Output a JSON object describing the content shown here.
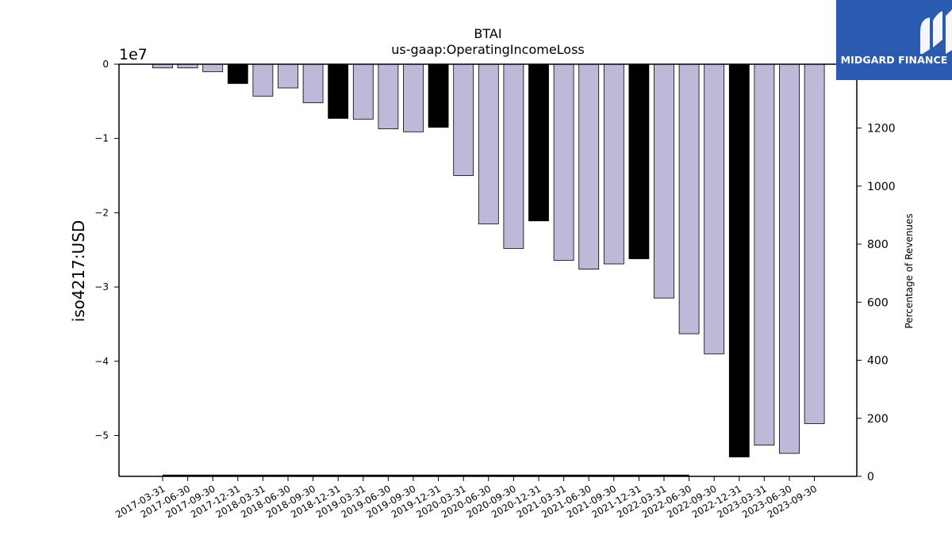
{
  "chart_data": {
    "type": "bar",
    "title": "BTAI",
    "subtitle": "us-gaap:OperatingIncomeLoss",
    "ylabel": "iso4217:USD",
    "y_offset_label": "1e7",
    "y2label": "Percentage of Revenues",
    "categories": [
      "2017-03-31",
      "2017-06-30",
      "2017-09-30",
      "2017-12-31",
      "2018-03-31",
      "2018-06-30",
      "2018-09-30",
      "2018-12-31",
      "2019-03-31",
      "2019-06-30",
      "2019-09-30",
      "2019-12-31",
      "2020-03-31",
      "2020-06-30",
      "2020-09-30",
      "2020-12-31",
      "2021-03-31",
      "2021-06-30",
      "2021-09-30",
      "2021-12-31",
      "2022-03-31",
      "2022-06-30",
      "2022-09-30",
      "2022-12-31",
      "2023-03-31",
      "2023-06-30",
      "2023-09-30"
    ],
    "values": [
      -0.05,
      -0.05,
      -0.1,
      -0.26,
      -0.43,
      -0.32,
      -0.52,
      -0.73,
      -0.74,
      -0.87,
      -0.91,
      -0.85,
      -1.5,
      -2.15,
      -2.48,
      -2.11,
      -2.64,
      -2.76,
      -2.69,
      -2.62,
      -3.15,
      -3.63,
      -3.9,
      -5.29,
      -5.13,
      -5.24,
      -4.84
    ],
    "value_multiplier": 10000000,
    "highlighted": [
      false,
      false,
      false,
      true,
      false,
      false,
      false,
      true,
      false,
      false,
      false,
      true,
      false,
      false,
      false,
      true,
      false,
      false,
      false,
      true,
      false,
      false,
      false,
      true,
      false,
      false,
      false
    ],
    "ylim": [
      -5.55,
      0
    ],
    "yticks": [
      0,
      -1,
      -2,
      -3,
      -4,
      -5
    ],
    "ytick_labels": [
      "0",
      "−1",
      "−2",
      "−3",
      "−4",
      "−5"
    ],
    "y2lim": [
      0,
      1420
    ],
    "y2ticks": [
      0,
      200,
      400,
      600,
      800,
      1000,
      1200
    ],
    "y2tick_labels": [
      "0",
      "200",
      "400",
      "600",
      "800",
      "1000",
      "1200"
    ],
    "percentage_line": {
      "from": "2017-03-31",
      "to": "2022-06-30",
      "value": 0
    },
    "colors": {
      "bar": "#bcb9d9",
      "highlight": "#000000",
      "edge": "#000000"
    },
    "grid": false
  },
  "watermark": {
    "brand": "MIDGARD FINANCE"
  }
}
